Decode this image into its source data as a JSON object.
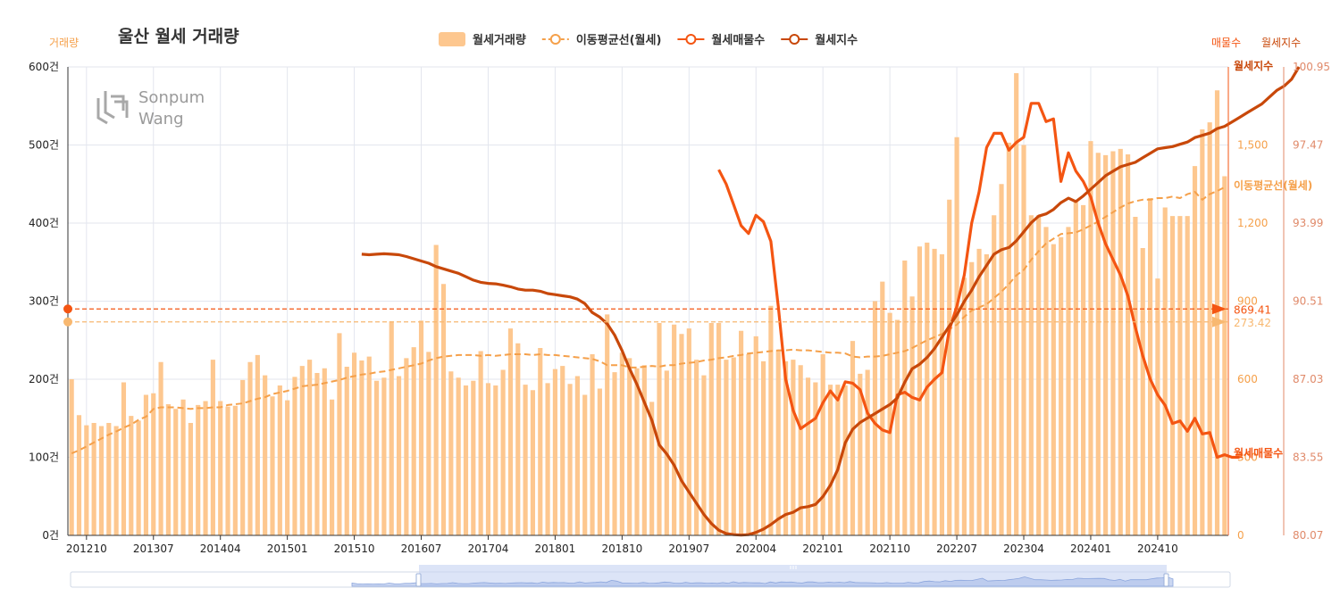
{
  "chart_data": {
    "type": "bar",
    "title": "울산  월세 거래량",
    "left_axis": {
      "unit_label": "거래량",
      "ticks": [
        "0건",
        "100건",
        "200건",
        "300건",
        "400건",
        "500건",
        "600건"
      ],
      "ylim": [
        0,
        600
      ]
    },
    "listing_axis": {
      "unit_label": "매물수",
      "ticks": [
        "0",
        "300",
        "600",
        "900",
        "1,200",
        "1,500"
      ],
      "ylim": [
        0,
        1800
      ]
    },
    "index_axis": {
      "unit_label": "월세지수",
      "ticks": [
        "80.07",
        "83.55",
        "87.03",
        "90.51",
        "93.99",
        "97.47",
        "100.95"
      ],
      "ylim": [
        80.07,
        100.95
      ]
    },
    "x_ticks": [
      "201210",
      "201307",
      "201404",
      "201501",
      "201510",
      "201607",
      "201704",
      "201801",
      "201810",
      "201907",
      "202004",
      "202101",
      "202110",
      "202207",
      "202304",
      "202401",
      "202410"
    ],
    "x_tick_positions": [
      2,
      11,
      20,
      29,
      38,
      47,
      56,
      65,
      74,
      83,
      92,
      101,
      110,
      119,
      128,
      137,
      146
    ],
    "legend": [
      {
        "label": "월세거래량",
        "color": "#fdc78f",
        "marker": "rect"
      },
      {
        "label": "이동평균선(월세)",
        "color": "#f5a04a",
        "marker": "circle-dashed"
      },
      {
        "label": "월세매물수",
        "color": "#f45512",
        "marker": "circle"
      },
      {
        "label": "월세지수",
        "color": "#c8480a",
        "marker": "circle"
      }
    ],
    "watermark": [
      "Sonpum",
      "Wang"
    ],
    "series": [
      {
        "name": "월세거래량",
        "axis": "left",
        "color": "#fdc78f",
        "values": [
          200,
          154,
          141,
          144,
          140,
          144,
          140,
          196,
          153,
          147,
          180,
          182,
          222,
          168,
          162,
          174,
          144,
          167,
          172,
          225,
          172,
          165,
          166,
          199,
          222,
          231,
          205,
          178,
          192,
          173,
          203,
          217,
          225,
          208,
          214,
          174,
          259,
          216,
          234,
          224,
          229,
          198,
          202,
          274,
          204,
          227,
          241,
          275,
          235,
          372,
          322,
          210,
          202,
          192,
          198,
          236,
          195,
          192,
          212,
          265,
          246,
          193,
          186,
          240,
          195,
          213,
          217,
          194,
          204,
          180,
          232,
          188,
          283,
          209,
          234,
          227,
          214,
          218,
          171,
          272,
          211,
          270,
          258,
          265,
          225,
          205,
          272,
          272,
          225,
          228,
          262,
          232,
          255,
          223,
          294,
          237,
          223,
          225,
          218,
          202,
          196,
          232,
          193,
          193,
          192,
          249,
          207,
          212,
          300,
          325,
          285,
          276,
          352,
          306,
          370,
          375,
          367,
          360,
          430,
          510,
          330,
          350,
          367,
          360,
          410,
          450,
          503,
          592,
          500,
          410,
          410,
          395,
          373,
          382,
          395,
          427,
          423,
          505,
          490,
          487,
          492,
          495,
          488,
          408,
          368,
          432,
          329,
          420,
          409,
          409,
          409,
          473,
          520,
          529,
          570,
          460
        ],
        "last_value_label": "273.42"
      },
      {
        "name": "이동평균선(월세)",
        "axis": "left",
        "color": "#f5a04a",
        "values": [
          105,
          109,
          114,
          119,
          124,
          129,
          133,
          138,
          142,
          148,
          152,
          162,
          164,
          164,
          164,
          163,
          162,
          163,
          163,
          164,
          164,
          167,
          168,
          169,
          172,
          175,
          177,
          181,
          183,
          185,
          188,
          191,
          192,
          193,
          195,
          197,
          199,
          202,
          204,
          206,
          207,
          209,
          210,
          212,
          214,
          216,
          218,
          220,
          224,
          227,
          229,
          230,
          231,
          231,
          231,
          230,
          231,
          230,
          231,
          232,
          232,
          232,
          231,
          232,
          231,
          231,
          230,
          229,
          228,
          227,
          226,
          223,
          218,
          218,
          218,
          215,
          215,
          216,
          217,
          216,
          218,
          218,
          220,
          221,
          222,
          224,
          225,
          227,
          228,
          230,
          231,
          233,
          234,
          235,
          236,
          237,
          237,
          238,
          237,
          237,
          236,
          235,
          234,
          234,
          233,
          229,
          228,
          229,
          229,
          230,
          232,
          234,
          236,
          240,
          245,
          250,
          254,
          258,
          264,
          270,
          280,
          288,
          292,
          296,
          304,
          312,
          322,
          333,
          340,
          353,
          364,
          374,
          380,
          386,
          387,
          388,
          392,
          397,
          402,
          408,
          414,
          420,
          425,
          428,
          430,
          430,
          432,
          432,
          434,
          432,
          437,
          440,
          430,
          437,
          441,
          446
        ],
        "last_value_label": "273.42",
        "end_label": "이동평균선(월세)"
      },
      {
        "name": "월세매물수",
        "axis": "listing",
        "color": "#f45512",
        "values": [
          null,
          null,
          null,
          null,
          null,
          null,
          null,
          null,
          null,
          null,
          null,
          null,
          null,
          null,
          null,
          null,
          null,
          null,
          null,
          null,
          null,
          null,
          null,
          null,
          null,
          null,
          null,
          null,
          null,
          null,
          null,
          null,
          null,
          null,
          null,
          null,
          null,
          null,
          null,
          null,
          null,
          null,
          null,
          null,
          null,
          null,
          null,
          null,
          null,
          null,
          null,
          null,
          null,
          null,
          null,
          null,
          null,
          null,
          null,
          null,
          null,
          null,
          null,
          null,
          null,
          null,
          null,
          null,
          null,
          null,
          null,
          null,
          null,
          null,
          null,
          null,
          null,
          null,
          null,
          null,
          null,
          null,
          null,
          null,
          null,
          null,
          null,
          1405,
          1350,
          1270,
          1190,
          1160,
          1230,
          1205,
          1130,
          880,
          600,
          480,
          410,
          430,
          450,
          510,
          555,
          520,
          590,
          585,
          560,
          470,
          430,
          405,
          395,
          540,
          550,
          530,
          520,
          570,
          600,
          625,
          790,
          880,
          1000,
          1200,
          1320,
          1490,
          1545,
          1545,
          1480,
          1510,
          1530,
          1660,
          1660,
          1590,
          1600,
          1360,
          1470,
          1400,
          1360,
          1300,
          1200,
          1120,
          1060,
          1000,
          920,
          800,
          690,
          600,
          540,
          500,
          430,
          440,
          400,
          450,
          390,
          395,
          300,
          310,
          300,
          300
        ],
        "last_value_label": "869.41",
        "end_label": "월세매물수"
      },
      {
        "name": "월세지수",
        "axis": "index",
        "color": "#c8480a",
        "values": [
          null,
          null,
          null,
          null,
          null,
          null,
          null,
          null,
          null,
          null,
          null,
          null,
          null,
          null,
          null,
          null,
          null,
          null,
          null,
          null,
          null,
          null,
          null,
          null,
          null,
          null,
          null,
          null,
          null,
          null,
          null,
          null,
          null,
          null,
          null,
          null,
          null,
          null,
          null,
          92.6,
          92.58,
          92.6,
          92.62,
          92.6,
          92.58,
          92.5,
          92.4,
          92.3,
          92.2,
          92.05,
          91.95,
          91.85,
          91.75,
          91.6,
          91.45,
          91.35,
          91.3,
          91.28,
          91.22,
          91.15,
          91.05,
          91.0,
          91.0,
          90.95,
          90.85,
          90.8,
          90.75,
          90.7,
          90.6,
          90.4,
          90.0,
          89.8,
          89.5,
          89.0,
          88.3,
          87.5,
          86.8,
          86.0,
          85.2,
          84.1,
          83.7,
          83.2,
          82.5,
          82.0,
          81.5,
          81.0,
          80.6,
          80.3,
          80.15,
          80.1,
          80.08,
          80.1,
          80.2,
          80.35,
          80.55,
          80.8,
          81.0,
          81.1,
          81.3,
          81.35,
          81.45,
          81.8,
          82.3,
          83.0,
          84.2,
          84.8,
          85.1,
          85.3,
          85.5,
          85.7,
          85.9,
          86.2,
          86.9,
          87.5,
          87.7,
          88.0,
          88.4,
          88.9,
          89.4,
          89.9,
          90.5,
          91.0,
          91.6,
          92.1,
          92.6,
          92.8,
          92.9,
          93.2,
          93.6,
          94.0,
          94.3,
          94.4,
          94.6,
          94.9,
          95.1,
          94.95,
          95.2,
          95.5,
          95.8,
          96.1,
          96.3,
          96.5,
          96.6,
          96.7,
          96.9,
          97.1,
          97.3,
          97.35,
          97.4,
          97.5,
          97.6,
          97.8,
          97.9,
          98.0,
          98.2,
          98.3,
          98.5,
          98.7,
          98.9,
          99.1,
          99.3,
          99.6,
          99.9,
          100.1,
          100.4,
          100.95
        ],
        "end_label": "월세지수"
      }
    ],
    "markers": [
      {
        "label": "869.41",
        "series": "월세매물수",
        "color": "#f45512"
      },
      {
        "label": "273.42",
        "series": "이동평균선(월세)",
        "color": "#f8b870"
      }
    ],
    "grid": true,
    "legend_position": "top-center",
    "data_zoom": true
  }
}
